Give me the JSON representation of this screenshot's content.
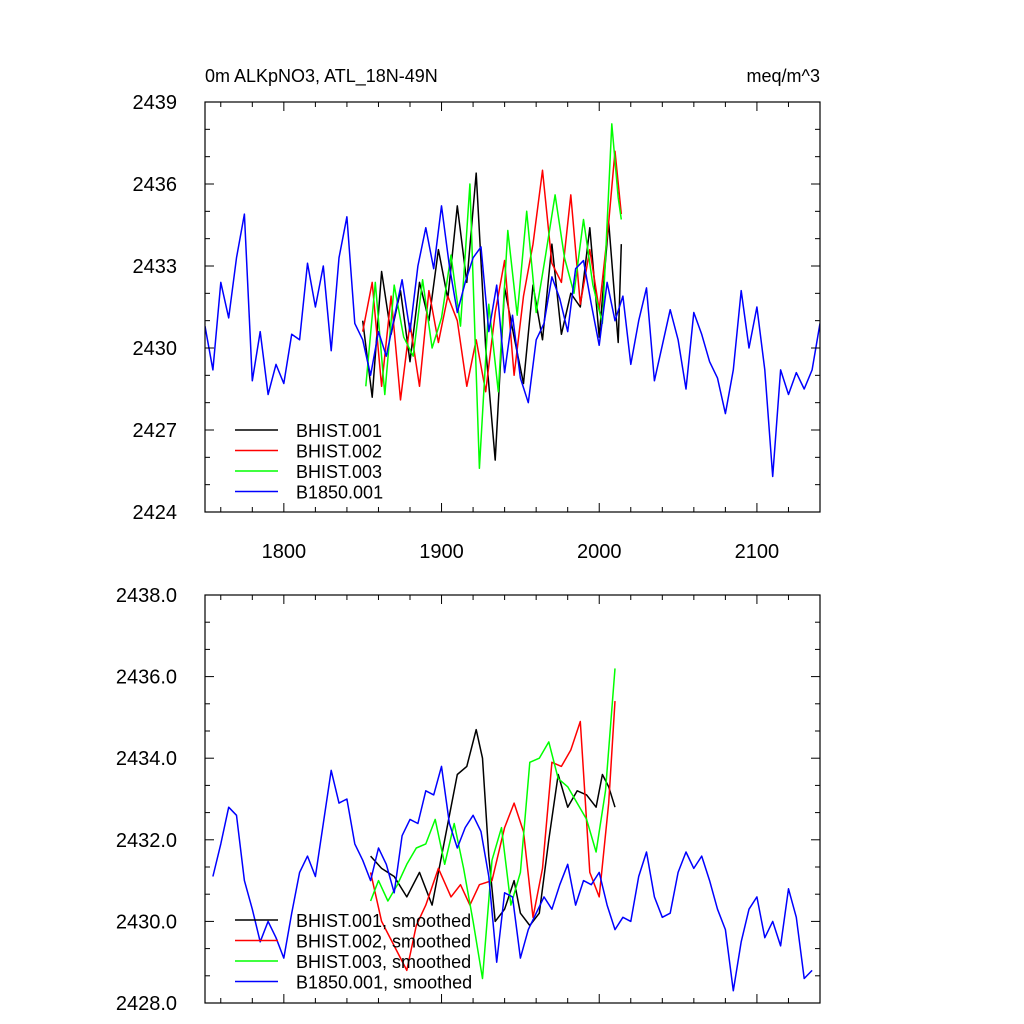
{
  "chart_data": [
    {
      "type": "line",
      "title_left": "0m ALKpNO3, ATL_18N-49N",
      "title_right": "meq/m^3",
      "xlim": [
        1750,
        2140
      ],
      "ylim": [
        2424,
        2439
      ],
      "xticks": [
        1800,
        1900,
        2000,
        2100
      ],
      "xtick_labels": [
        "1800",
        "1900",
        "2000",
        "2100"
      ],
      "yticks": [
        2424,
        2427,
        2430,
        2433,
        2436,
        2439
      ],
      "ytick_labels": [
        "2424",
        "2427",
        "2430",
        "2433",
        "2436",
        "2439"
      ],
      "legend_position": "bottom-left",
      "series": [
        {
          "name": "BHIST.001",
          "color": "#000000",
          "x": [
            1850,
            1856,
            1862,
            1868,
            1874,
            1880,
            1886,
            1892,
            1898,
            1904,
            1910,
            1916,
            1922,
            1928,
            1934,
            1940,
            1946,
            1952,
            1958,
            1964,
            1970,
            1976,
            1982,
            1988,
            1994,
            2000,
            2006,
            2012,
            2014
          ],
          "y": [
            2431.0,
            2428.2,
            2432.8,
            2430.5,
            2432.1,
            2429.5,
            2432.4,
            2431.0,
            2433.6,
            2431.8,
            2435.2,
            2432.4,
            2436.4,
            2430.0,
            2425.9,
            2432.2,
            2430.4,
            2428.7,
            2432.3,
            2430.3,
            2433.8,
            2430.5,
            2432.0,
            2431.5,
            2434.4,
            2430.4,
            2434.6,
            2430.2,
            2433.8
          ]
        },
        {
          "name": "BHIST.002",
          "color": "#ff0000",
          "x": [
            1850,
            1856,
            1862,
            1868,
            1874,
            1880,
            1886,
            1892,
            1898,
            1904,
            1910,
            1916,
            1922,
            1928,
            1934,
            1940,
            1946,
            1952,
            1958,
            1964,
            1970,
            1976,
            1982,
            1988,
            1994,
            2000,
            2006,
            2010,
            2014
          ],
          "y": [
            2430.6,
            2432.4,
            2428.6,
            2431.9,
            2428.1,
            2430.9,
            2428.6,
            2432.1,
            2430.2,
            2431.9,
            2431.0,
            2428.6,
            2430.3,
            2428.4,
            2431.3,
            2433.2,
            2429.0,
            2431.9,
            2433.8,
            2436.5,
            2433.1,
            2432.4,
            2435.6,
            2431.6,
            2433.6,
            2431.4,
            2434.6,
            2437.2,
            2434.9
          ]
        },
        {
          "name": "BHIST.003",
          "color": "#00ff00",
          "x": [
            1852,
            1858,
            1864,
            1870,
            1876,
            1882,
            1888,
            1894,
            1900,
            1906,
            1912,
            1918,
            1924,
            1930,
            1936,
            1942,
            1948,
            1954,
            1960,
            1966,
            1972,
            1978,
            1984,
            1990,
            1996,
            2002,
            2008,
            2012,
            2014
          ],
          "y": [
            2428.6,
            2432.4,
            2428.3,
            2432.3,
            2430.4,
            2429.7,
            2432.5,
            2430.0,
            2431.1,
            2433.4,
            2430.8,
            2436.0,
            2425.6,
            2431.6,
            2428.4,
            2434.3,
            2431.2,
            2435.0,
            2431.3,
            2433.4,
            2435.6,
            2433.3,
            2432.0,
            2434.7,
            2432.3,
            2430.9,
            2438.2,
            2435.5,
            2434.7
          ]
        },
        {
          "name": "B1850.001",
          "color": "#0000ff",
          "x": [
            1750,
            1755,
            1760,
            1765,
            1770,
            1775,
            1780,
            1785,
            1790,
            1795,
            1800,
            1805,
            1810,
            1815,
            1820,
            1825,
            1830,
            1835,
            1840,
            1845,
            1850,
            1855,
            1860,
            1865,
            1870,
            1875,
            1880,
            1885,
            1890,
            1895,
            1900,
            1905,
            1910,
            1915,
            1920,
            1925,
            1930,
            1935,
            1940,
            1945,
            1950,
            1955,
            1960,
            1965,
            1970,
            1975,
            1980,
            1985,
            1990,
            1995,
            2000,
            2005,
            2010,
            2015,
            2020,
            2025,
            2030,
            2035,
            2040,
            2045,
            2050,
            2055,
            2060,
            2065,
            2070,
            2075,
            2080,
            2085,
            2090,
            2095,
            2100,
            2105,
            2110,
            2115,
            2120,
            2125,
            2130,
            2135,
            2140
          ],
          "y": [
            2430.8,
            2429.2,
            2432.4,
            2431.1,
            2433.3,
            2434.9,
            2428.8,
            2430.6,
            2428.3,
            2429.4,
            2428.7,
            2430.5,
            2430.3,
            2433.1,
            2431.5,
            2433.0,
            2429.9,
            2433.3,
            2434.8,
            2430.9,
            2430.3,
            2429.0,
            2430.6,
            2429.7,
            2431.1,
            2432.5,
            2430.6,
            2433.0,
            2434.4,
            2432.9,
            2435.2,
            2433.0,
            2431.3,
            2432.4,
            2433.3,
            2433.7,
            2430.6,
            2432.3,
            2429.1,
            2431.2,
            2428.9,
            2428.0,
            2430.3,
            2430.9,
            2432.6,
            2431.8,
            2430.6,
            2432.9,
            2433.2,
            2431.6,
            2430.1,
            2432.4,
            2431.0,
            2431.9,
            2429.4,
            2431.0,
            2432.2,
            2428.8,
            2430.1,
            2431.4,
            2430.3,
            2428.5,
            2431.3,
            2430.5,
            2429.5,
            2428.9,
            2427.6,
            2429.2,
            2432.1,
            2430.0,
            2431.5,
            2429.2,
            2425.3,
            2429.2,
            2428.3,
            2429.1,
            2428.5,
            2429.2,
            2430.9
          ]
        }
      ],
      "legend": [
        "BHIST.001",
        "BHIST.002",
        "BHIST.003",
        "B1850.001"
      ]
    },
    {
      "type": "line",
      "xlim": [
        1750,
        2140
      ],
      "ylim": [
        2428.0,
        2438.0
      ],
      "xticks": [
        1800,
        1900,
        2000,
        2100
      ],
      "yticks": [
        2428.0,
        2430.0,
        2432.0,
        2434.0,
        2436.0,
        2438.0
      ],
      "ytick_labels": [
        "2428.0",
        "2430.0",
        "2432.0",
        "2434.0",
        "2436.0",
        "2438.0"
      ],
      "legend_position": "bottom-left",
      "series": [
        {
          "name": "BHIST.001, smoothed",
          "color": "#000000",
          "x": [
            1855,
            1862,
            1870,
            1878,
            1886,
            1894,
            1902,
            1910,
            1916,
            1922,
            1926,
            1930,
            1934,
            1940,
            1946,
            1950,
            1956,
            1962,
            1968,
            1974,
            1980,
            1986,
            1992,
            1998,
            2002,
            2006,
            2010
          ],
          "y": [
            2431.6,
            2431.3,
            2431.1,
            2430.6,
            2431.2,
            2430.4,
            2432.0,
            2433.6,
            2433.8,
            2434.7,
            2434.0,
            2431.6,
            2430.0,
            2430.3,
            2431.0,
            2430.2,
            2429.9,
            2430.2,
            2432.0,
            2433.6,
            2432.8,
            2433.2,
            2433.1,
            2432.8,
            2433.6,
            2433.3,
            2432.8
          ]
        },
        {
          "name": "BHIST.002, smoothed",
          "color": "#ff0000",
          "x": [
            1855,
            1862,
            1870,
            1878,
            1884,
            1890,
            1898,
            1906,
            1912,
            1918,
            1924,
            1932,
            1940,
            1946,
            1952,
            1958,
            1964,
            1970,
            1976,
            1982,
            1988,
            1994,
            2000,
            2006,
            2010
          ],
          "y": [
            2431.2,
            2430.0,
            2429.4,
            2428.8,
            2429.9,
            2430.4,
            2431.3,
            2430.6,
            2430.9,
            2430.4,
            2430.9,
            2431.0,
            2432.3,
            2432.9,
            2432.2,
            2430.1,
            2431.3,
            2433.9,
            2433.8,
            2434.2,
            2434.9,
            2431.2,
            2430.6,
            2432.9,
            2435.4
          ]
        },
        {
          "name": "BHIST.003, smoothed",
          "color": "#00ff00",
          "x": [
            1855,
            1860,
            1866,
            1872,
            1878,
            1884,
            1890,
            1896,
            1902,
            1908,
            1914,
            1920,
            1926,
            1932,
            1938,
            1944,
            1950,
            1956,
            1962,
            1968,
            1974,
            1980,
            1986,
            1992,
            1998,
            2004,
            2010
          ],
          "y": [
            2430.5,
            2431.0,
            2430.5,
            2430.9,
            2431.4,
            2431.8,
            2431.9,
            2432.5,
            2431.4,
            2432.4,
            2431.3,
            2430.0,
            2428.6,
            2431.5,
            2432.3,
            2430.4,
            2431.2,
            2433.9,
            2434.0,
            2434.4,
            2433.5,
            2433.3,
            2432.9,
            2432.5,
            2431.7,
            2433.2,
            2436.2
          ]
        },
        {
          "name": "B1850.001, smoothed",
          "color": "#0000ff",
          "x": [
            1755,
            1760,
            1765,
            1770,
            1775,
            1780,
            1785,
            1790,
            1795,
            1800,
            1805,
            1810,
            1815,
            1820,
            1825,
            1830,
            1835,
            1840,
            1845,
            1850,
            1855,
            1860,
            1865,
            1870,
            1875,
            1880,
            1885,
            1890,
            1895,
            1900,
            1905,
            1910,
            1915,
            1920,
            1925,
            1930,
            1935,
            1940,
            1945,
            1950,
            1955,
            1960,
            1965,
            1970,
            1975,
            1980,
            1985,
            1990,
            1995,
            2000,
            2005,
            2010,
            2015,
            2020,
            2025,
            2030,
            2035,
            2040,
            2045,
            2050,
            2055,
            2060,
            2065,
            2070,
            2075,
            2080,
            2085,
            2090,
            2095,
            2100,
            2105,
            2110,
            2115,
            2120,
            2125,
            2130,
            2135
          ],
          "y": [
            2431.1,
            2431.9,
            2432.8,
            2432.6,
            2431.0,
            2430.3,
            2429.5,
            2430.0,
            2429.6,
            2429.1,
            2430.2,
            2431.2,
            2431.6,
            2431.1,
            2432.4,
            2433.7,
            2432.9,
            2433.0,
            2431.9,
            2431.5,
            2431.0,
            2431.8,
            2431.4,
            2430.7,
            2432.1,
            2432.5,
            2432.4,
            2433.2,
            2433.1,
            2433.8,
            2432.4,
            2431.8,
            2432.3,
            2432.6,
            2432.2,
            2431.1,
            2429.0,
            2430.7,
            2430.6,
            2429.1,
            2429.8,
            2430.2,
            2430.6,
            2430.3,
            2430.9,
            2431.4,
            2430.4,
            2431.0,
            2430.9,
            2431.2,
            2430.4,
            2429.8,
            2430.1,
            2430.0,
            2431.1,
            2431.7,
            2430.6,
            2430.1,
            2430.2,
            2431.2,
            2431.7,
            2431.3,
            2431.6,
            2431.0,
            2430.3,
            2429.8,
            2428.3,
            2429.5,
            2430.3,
            2430.6,
            2429.6,
            2430.0,
            2429.4,
            2430.8,
            2430.1,
            2428.6,
            2428.8
          ]
        }
      ],
      "legend": [
        "BHIST.001, smoothed",
        "BHIST.002, smoothed",
        "BHIST.003, smoothed",
        "B1850.001, smoothed"
      ]
    }
  ]
}
